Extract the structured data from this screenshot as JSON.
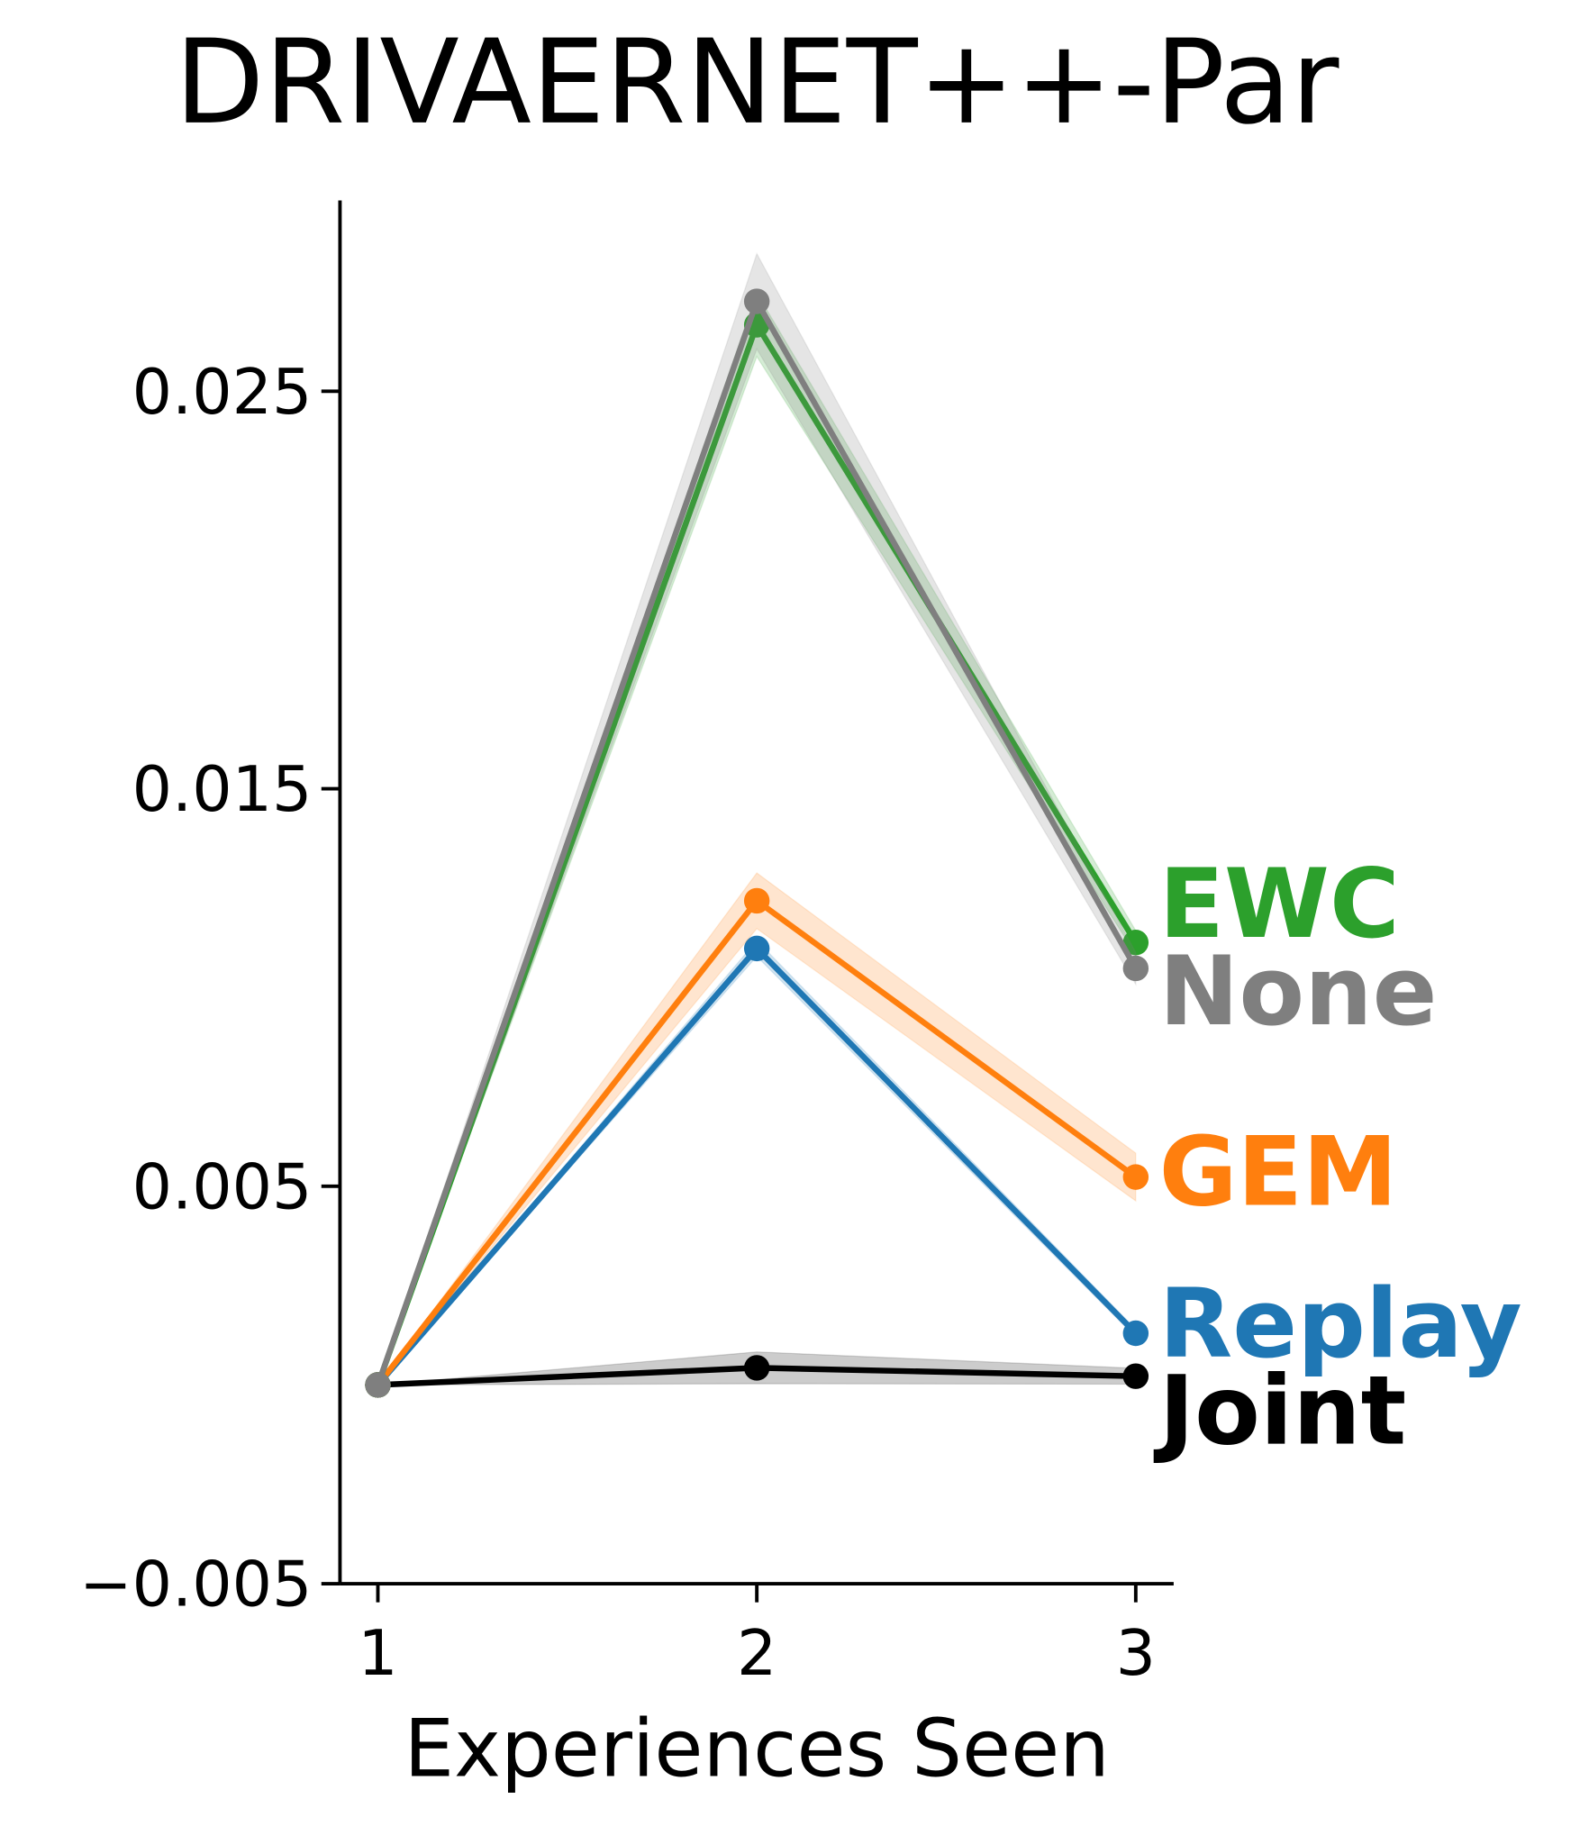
{
  "chart_data": {
    "type": "line",
    "title": "DRIVAERNET++-Par",
    "x_label": "Experiences Seen",
    "x": [
      1,
      2,
      3
    ],
    "xlim": [
      0.9,
      3.1
    ],
    "xticks": [
      1,
      2,
      3
    ],
    "ylim": [
      -0.005,
      0.0298
    ],
    "yticks": [
      {
        "value": -0.005,
        "label": "−0.005"
      },
      0.005,
      0.015,
      0.025
    ],
    "series": [
      {
        "name": "EWC",
        "color": "#2ca02c",
        "values": [
          0,
          0.02667,
          0.01113
        ],
        "errors": [
          0,
          0.0008,
          0.0003
        ]
      },
      {
        "name": "None",
        "color": "#7f7f7f",
        "values": [
          0,
          0.02726,
          0.01048
        ],
        "errors": [
          0,
          0.0012,
          0.0004
        ]
      },
      {
        "name": "GEM",
        "color": "#ff7f0e",
        "values": [
          0,
          0.01218,
          0.00523
        ],
        "errors": [
          0,
          0.0007,
          0.0006
        ]
      },
      {
        "name": "Replay",
        "color": "#1f77b4",
        "values": [
          0,
          0.01098,
          0.0013
        ],
        "errors": [
          0,
          0.0002,
          0.0001
        ]
      },
      {
        "name": "Joint",
        "color": "#000000",
        "values": [
          0,
          0.00043,
          0.00022
        ],
        "errors": [
          0,
          0.0004,
          0.0002
        ]
      }
    ]
  }
}
